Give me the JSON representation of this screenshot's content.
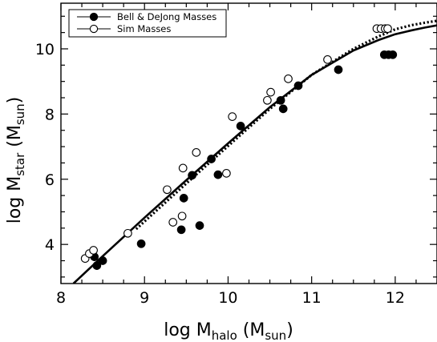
{
  "chart_data": {
    "type": "scatter",
    "xlabel": {
      "main": "log M",
      "sub1": "halo",
      "mid": " (M",
      "sub2": "sun",
      "end": ")"
    },
    "ylabel": {
      "main": "log M",
      "sub1": "star",
      "mid": " (M",
      "sub2": "sun",
      "end": ")"
    },
    "xlim": [
      8.0,
      12.5
    ],
    "ylim": [
      2.8,
      11.4
    ],
    "xticks": [
      8,
      9,
      10,
      11,
      12
    ],
    "yticks": [
      4,
      6,
      8,
      10
    ],
    "xtick_labels": [
      "8",
      "9",
      "10",
      "11",
      "12"
    ],
    "ytick_labels": [
      "4",
      "6",
      "8",
      "10"
    ],
    "grid": false,
    "legend_position": "top-left",
    "series": [
      {
        "name": "Bell & DeJong Masses",
        "marker": "filled-circle",
        "points": [
          [
            8.4,
            3.62
          ],
          [
            8.43,
            3.35
          ],
          [
            8.5,
            3.5
          ],
          [
            8.96,
            4.02
          ],
          [
            9.44,
            4.45
          ],
          [
            9.47,
            5.42
          ],
          [
            9.57,
            6.12
          ],
          [
            9.66,
            4.58
          ],
          [
            9.8,
            6.62
          ],
          [
            9.88,
            6.14
          ],
          [
            10.15,
            7.63
          ],
          [
            10.63,
            8.42
          ],
          [
            10.66,
            8.16
          ],
          [
            10.84,
            8.87
          ],
          [
            11.32,
            9.36
          ],
          [
            11.87,
            9.82
          ],
          [
            11.92,
            9.82
          ],
          [
            11.97,
            9.82
          ]
        ]
      },
      {
        "name": "Sim Masses",
        "marker": "open-circle",
        "points": [
          [
            8.29,
            3.57
          ],
          [
            8.34,
            3.72
          ],
          [
            8.39,
            3.82
          ],
          [
            8.8,
            4.34
          ],
          [
            9.27,
            5.68
          ],
          [
            9.34,
            4.68
          ],
          [
            9.45,
            4.87
          ],
          [
            9.46,
            6.34
          ],
          [
            9.62,
            6.82
          ],
          [
            9.98,
            6.18
          ],
          [
            10.05,
            7.92
          ],
          [
            10.47,
            8.42
          ],
          [
            10.51,
            8.67
          ],
          [
            10.72,
            9.08
          ],
          [
            11.19,
            9.67
          ],
          [
            11.78,
            10.62
          ],
          [
            11.83,
            10.62
          ],
          [
            11.88,
            10.62
          ],
          [
            11.91,
            10.62
          ]
        ]
      }
    ],
    "curves": [
      {
        "style": "solid",
        "points": [
          [
            8.15,
            2.8
          ],
          [
            8.5,
            3.64
          ],
          [
            9.0,
            4.82
          ],
          [
            9.5,
            5.97
          ],
          [
            10.0,
            7.1
          ],
          [
            10.5,
            8.21
          ],
          [
            11.0,
            9.2
          ],
          [
            11.5,
            9.95
          ],
          [
            11.8,
            10.27
          ],
          [
            12.0,
            10.45
          ],
          [
            12.2,
            10.57
          ],
          [
            12.35,
            10.65
          ],
          [
            12.5,
            10.72
          ]
        ]
      },
      {
        "style": "dotted",
        "points": [
          [
            8.9,
            4.47
          ],
          [
            9.5,
            5.87
          ],
          [
            10.0,
            7.02
          ],
          [
            10.5,
            8.16
          ],
          [
            11.0,
            9.2
          ],
          [
            11.5,
            10.0
          ],
          [
            11.8,
            10.38
          ],
          [
            12.0,
            10.6
          ],
          [
            12.2,
            10.73
          ],
          [
            12.35,
            10.8
          ],
          [
            12.5,
            10.86
          ]
        ]
      }
    ]
  }
}
